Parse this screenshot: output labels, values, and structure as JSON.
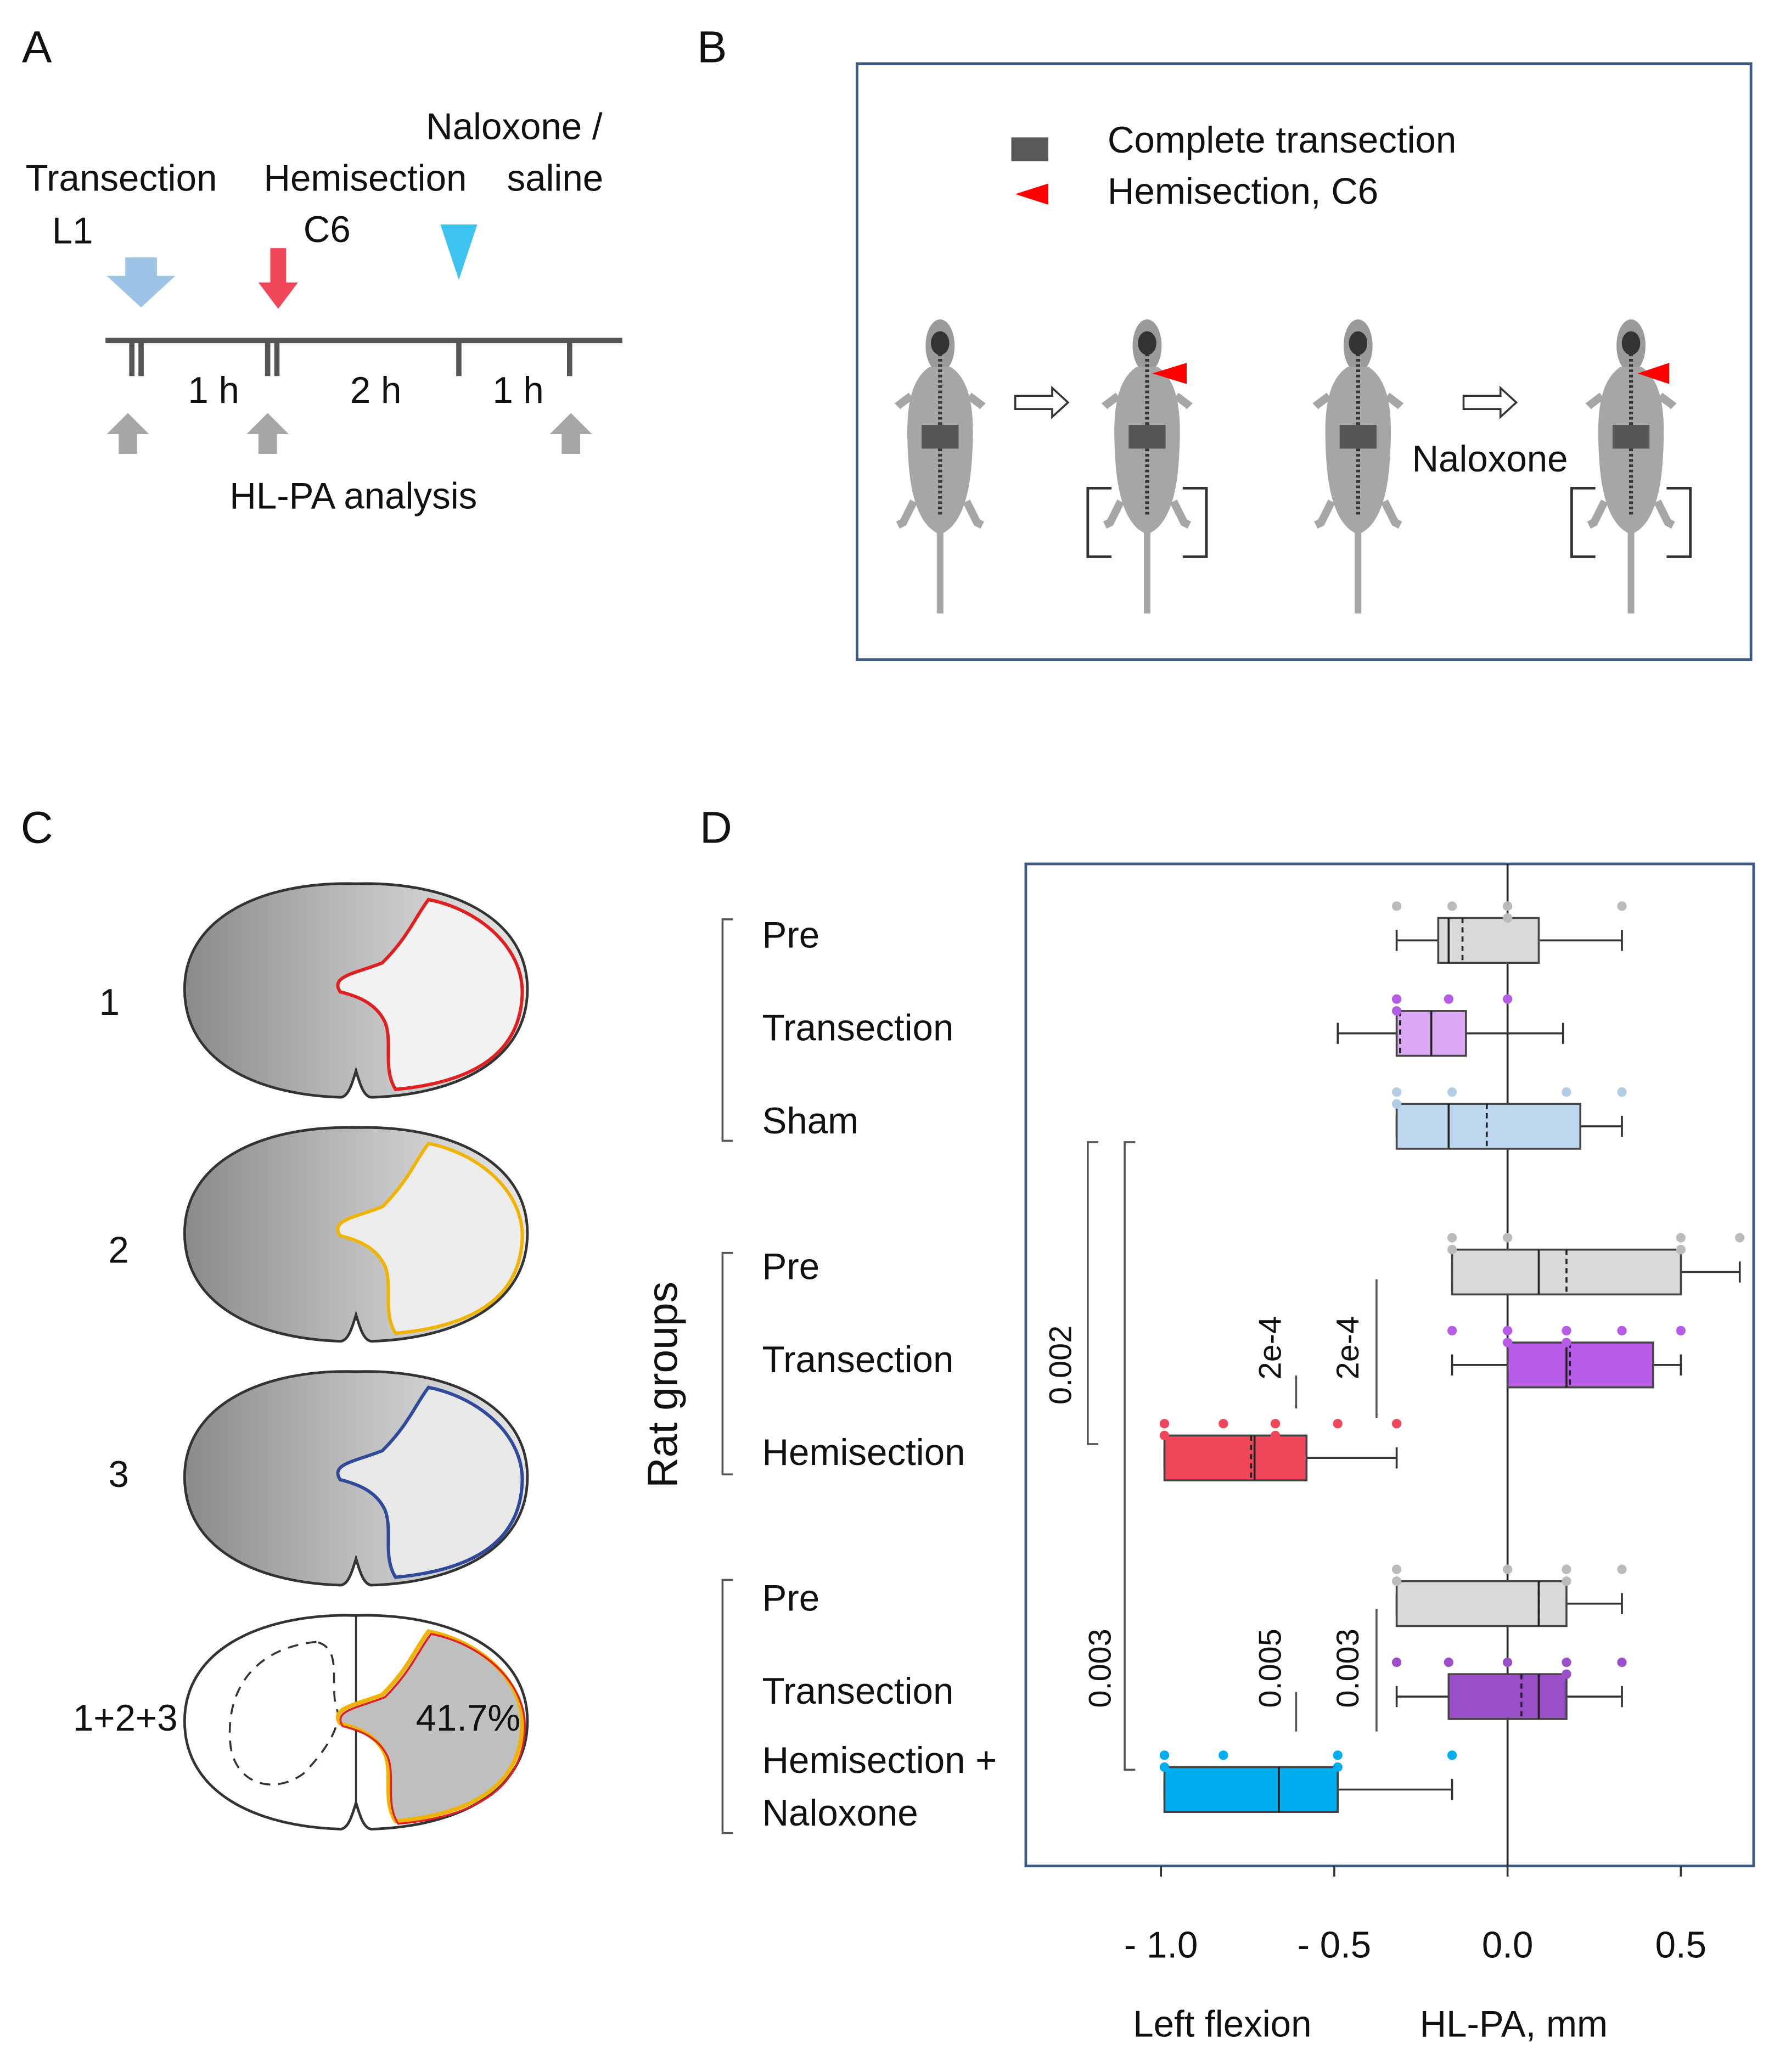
{
  "panels": {
    "a": "A",
    "b": "B",
    "c": "C",
    "d": "D"
  },
  "timeline": {
    "transection": [
      "Transection",
      "L1"
    ],
    "hemisection": [
      "Hemisection",
      "C6"
    ],
    "naloxone": [
      "Naloxone /",
      "saline"
    ],
    "intervals": [
      "1 h",
      "2 h",
      "1 h"
    ],
    "analysis": "HL-PA analysis"
  },
  "schematic": {
    "legend": [
      "Complete transection",
      "Hemisection, C6"
    ],
    "treatment": "Naloxone"
  },
  "sections": {
    "labels": [
      "1",
      "2",
      "3",
      "1+2+3"
    ],
    "overlap": "41.7%"
  },
  "chart_data": {
    "type": "box",
    "ylabel": "Rat groups",
    "xlabel": "HL-PA, mm",
    "xlabel_note": "Left flexion",
    "xlim": [
      -1.39,
      0.71
    ],
    "xticks": [
      {
        "value": -1.0,
        "label": "- 1.0"
      },
      {
        "value": -0.5,
        "label": "- 0.5"
      },
      {
        "value": 0,
        "label": "0.0"
      },
      0.5
    ],
    "categories": [
      "Pre",
      "Transection",
      "Sham",
      "Pre",
      "Transection",
      "Hemisection",
      "Pre",
      "Transection",
      [
        "Hemisection +",
        "Naloxone"
      ]
    ],
    "boxes": [
      {
        "color": "#d9d9d9",
        "point_color": "#bbbbbb",
        "whisker_low": -0.32,
        "q1": -0.2,
        "median": -0.17,
        "mean": -0.13,
        "q3": 0.09,
        "whisker_high": 0.33,
        "points": [
          -0.32,
          -0.16,
          0,
          0,
          0.33
        ]
      },
      {
        "color": "#dba8f3",
        "point_color": "#b45ee6",
        "whisker_low": -0.49,
        "q1": -0.32,
        "median": -0.22,
        "mean": -0.31,
        "q3": -0.12,
        "whisker_high": 0.16,
        "points": [
          -0.32,
          -0.32,
          -0.17,
          0
        ]
      },
      {
        "color": "#bdd7ee",
        "point_color": "#b4cde6",
        "whisker_low": -0.32,
        "q1": -0.32,
        "median": -0.17,
        "mean": -0.06,
        "q3": 0.21,
        "whisker_high": 0.33,
        "points": [
          -0.32,
          -0.32,
          -0.16,
          0.17,
          0.33
        ]
      },
      {
        "color": "#d9d9d9",
        "point_color": "#bbbbbb",
        "whisker_low": -0.16,
        "q1": -0.16,
        "median": 0.09,
        "mean": 0.17,
        "q3": 0.5,
        "whisker_high": 0.67,
        "points": [
          -0.16,
          -0.16,
          0,
          0.5,
          0.5,
          0.67
        ]
      },
      {
        "color": "#b65ce6",
        "point_color": "#b65ce6",
        "whisker_low": -0.16,
        "q1": 0,
        "median": 0.17,
        "mean": 0.18,
        "q3": 0.42,
        "whisker_high": 0.5,
        "points": [
          -0.16,
          0,
          0,
          0.17,
          0.17,
          0.33,
          0.5
        ]
      },
      {
        "color": "#f0485a",
        "point_color": "#f0485a",
        "whisker_low": -0.99,
        "q1": -0.99,
        "median": -0.73,
        "mean": -0.74,
        "q3": -0.58,
        "whisker_high": -0.32,
        "points": [
          -0.99,
          -0.99,
          -0.82,
          -0.67,
          -0.67,
          -0.49,
          -0.32
        ]
      },
      {
        "color": "#d9d9d9",
        "point_color": "#bbbbbb",
        "whisker_low": -0.32,
        "q1": -0.32,
        "median": 0.09,
        "mean": 0.09,
        "q3": 0.17,
        "whisker_high": 0.33,
        "points": [
          -0.32,
          -0.32,
          0,
          0.17,
          0.17,
          0.33
        ]
      },
      {
        "color": "#9a4fc9",
        "point_color": "#9a4fc9",
        "whisker_low": -0.32,
        "q1": -0.17,
        "median": 0.09,
        "mean": 0.04,
        "q3": 0.17,
        "whisker_high": 0.33,
        "points": [
          -0.32,
          -0.17,
          0,
          0.17,
          0.17,
          0.33
        ]
      },
      {
        "color": "#00aeef",
        "point_color": "#00aeef",
        "whisker_low": -0.99,
        "q1": -0.99,
        "median": -0.66,
        "mean": -0.66,
        "q3": -0.49,
        "whisker_high": -0.16,
        "points": [
          -0.99,
          -0.99,
          -0.82,
          -0.49,
          -0.49,
          -0.16
        ]
      }
    ],
    "annotations": [
      "0.002",
      "0.003",
      "2e-4",
      "2e-4",
      "0.005",
      "0.003"
    ]
  }
}
